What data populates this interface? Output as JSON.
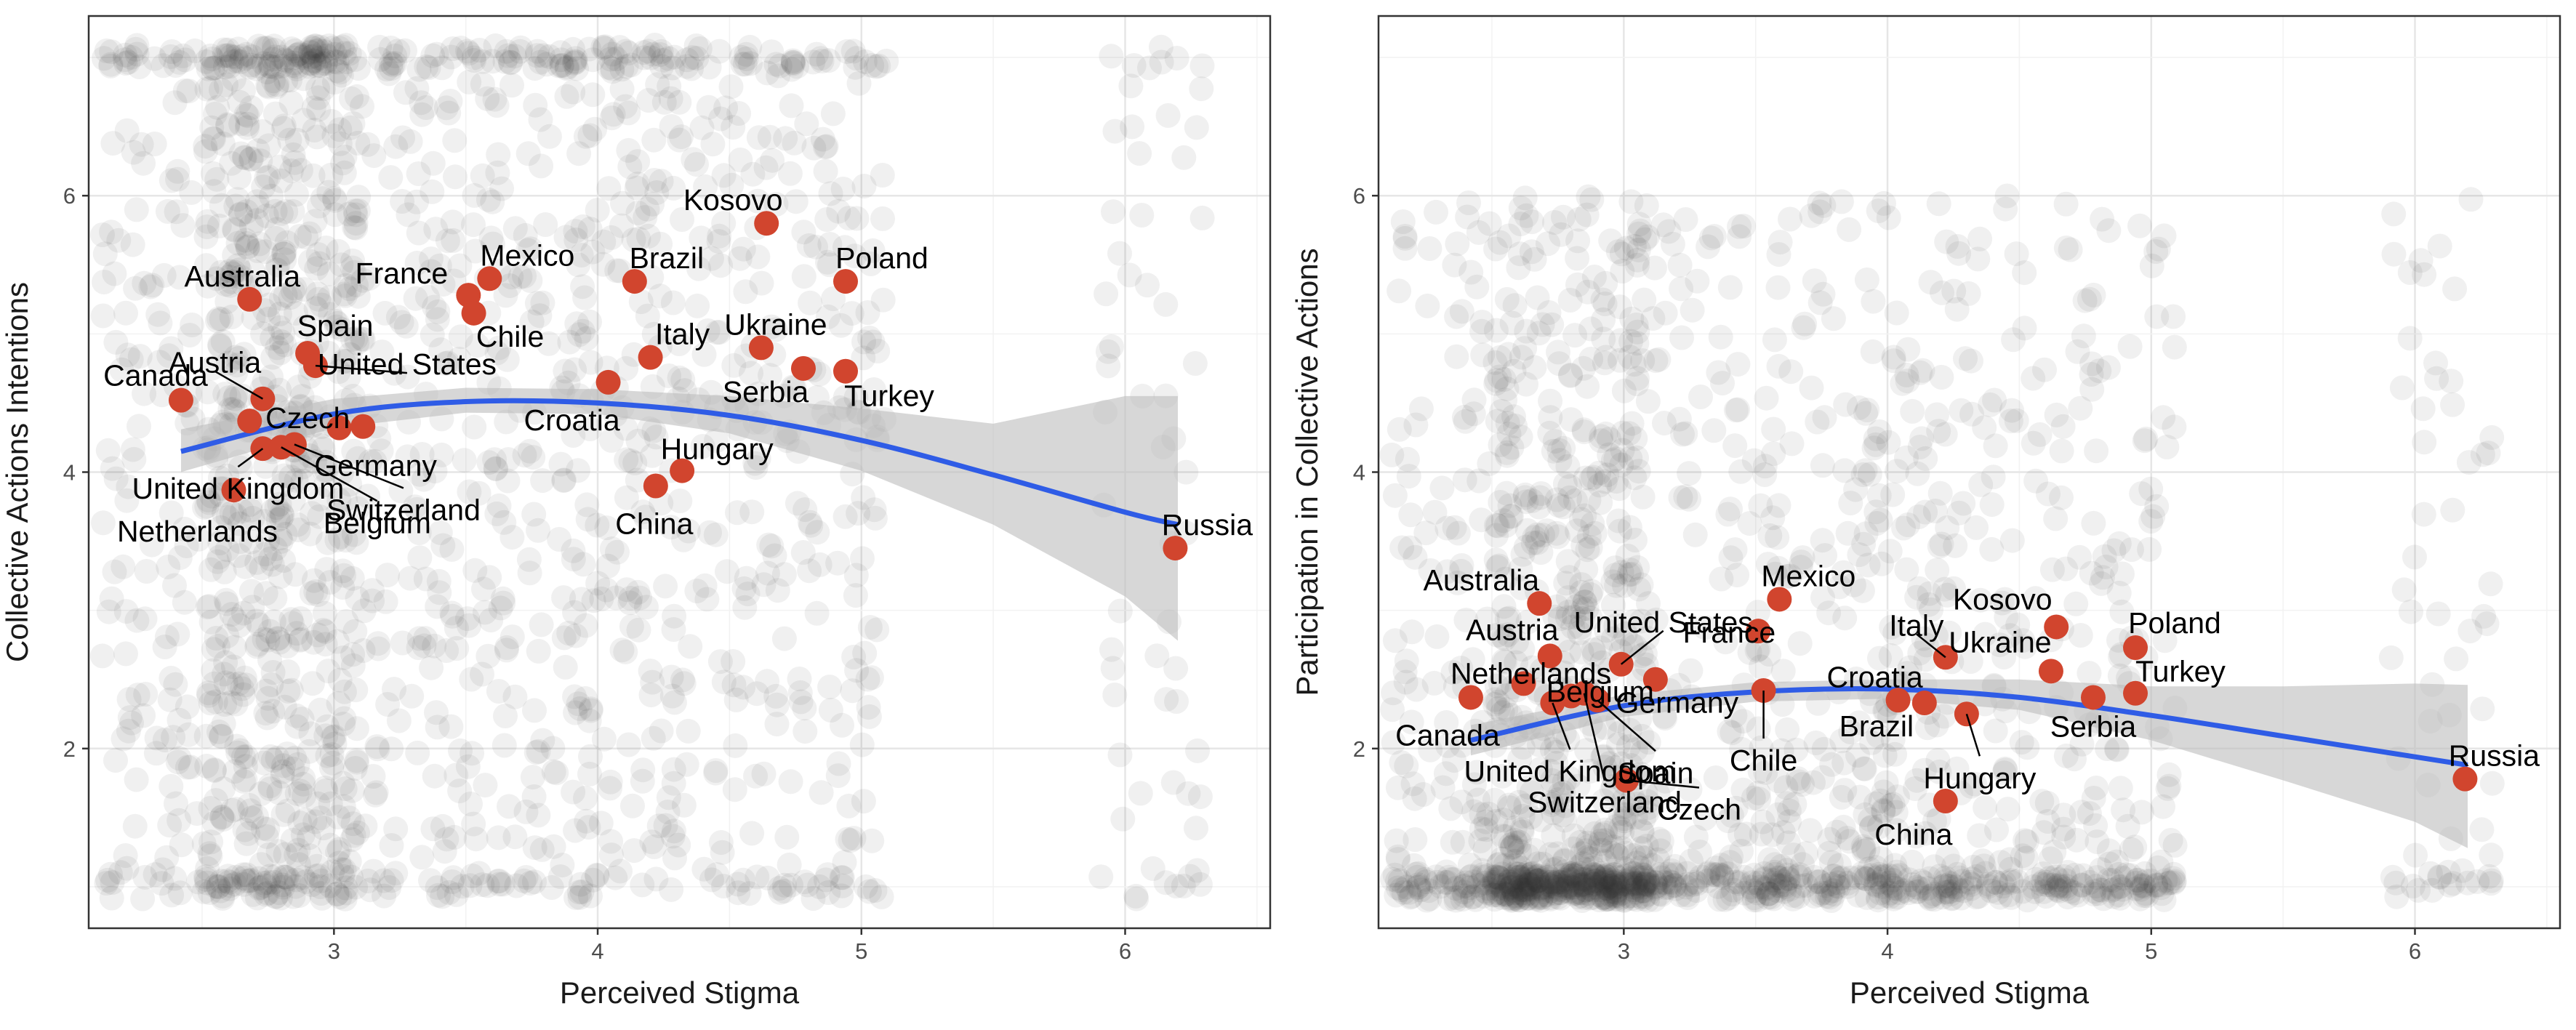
{
  "colors": {
    "jitter_points": "#333333",
    "country_points": "#d1452e",
    "fit_line": "#2f5ce6",
    "confidence_band": "#bdbdbd",
    "grid_major": "#e6e6e6",
    "grid_minor": "#f2f2f2",
    "panel_border": "#333333"
  },
  "chart_data": [
    {
      "type": "scatter",
      "xlabel": "Perceived Stigma",
      "ylabel": "Collective Actions Intentions",
      "x_ticks": [
        3,
        4,
        5,
        6
      ],
      "y_ticks": [
        2,
        4,
        6
      ],
      "xlim": [
        2.07,
        6.55
      ],
      "ylim": [
        0.7,
        7.3
      ],
      "grid": true,
      "individual_responses": {
        "x_levels": [
          2.2,
          2.4,
          2.6,
          2.8,
          3.0,
          3.2,
          3.4,
          3.6,
          3.8,
          4.0,
          4.2,
          4.4,
          4.6,
          4.8,
          5.0,
          6.0,
          6.2
        ],
        "y_range": [
          1,
          7
        ]
      },
      "fit": {
        "method": "quadratic",
        "x": [
          2.42,
          3.0,
          3.5,
          4.0,
          4.5,
          5.0,
          5.5,
          6.0,
          6.2
        ],
        "y": [
          4.15,
          4.42,
          4.51,
          4.5,
          4.41,
          4.23,
          3.98,
          3.71,
          3.62
        ],
        "ci_lower": [
          4.0,
          4.32,
          4.43,
          4.42,
          4.28,
          4.01,
          3.62,
          3.1,
          2.78
        ],
        "ci_upper": [
          4.31,
          4.53,
          4.61,
          4.6,
          4.55,
          4.46,
          4.35,
          4.55,
          4.55
        ]
      },
      "countries": [
        {
          "name": "Australia",
          "x": 2.68,
          "y": 5.25
        },
        {
          "name": "Canada",
          "x": 2.42,
          "y": 4.52
        },
        {
          "name": "Austria",
          "x": 2.73,
          "y": 4.53
        },
        {
          "name": "Czech",
          "x": 2.68,
          "y": 4.37
        },
        {
          "name": "Spain",
          "x": 2.9,
          "y": 4.86
        },
        {
          "name": "United States",
          "x": 2.93,
          "y": 4.77
        },
        {
          "name": "United Kingdom",
          "x": 2.73,
          "y": 4.17
        },
        {
          "name": "Netherlands",
          "x": 2.62,
          "y": 3.87
        },
        {
          "name": "Belgium",
          "x": 2.8,
          "y": 4.18
        },
        {
          "name": "Switzerland",
          "x": 2.85,
          "y": 4.2
        },
        {
          "name": "Germany",
          "x": 3.02,
          "y": 4.32
        },
        {
          "name": "Germany",
          "x": 3.11,
          "y": 4.33
        },
        {
          "name": "France",
          "x": 3.51,
          "y": 5.28
        },
        {
          "name": "Mexico",
          "x": 3.59,
          "y": 5.4
        },
        {
          "name": "Chile",
          "x": 3.53,
          "y": 5.15
        },
        {
          "name": "Croatia",
          "x": 4.04,
          "y": 4.65
        },
        {
          "name": "Brazil",
          "x": 4.14,
          "y": 5.38
        },
        {
          "name": "Italy",
          "x": 4.2,
          "y": 4.83
        },
        {
          "name": "Hungary",
          "x": 4.32,
          "y": 4.01
        },
        {
          "name": "China",
          "x": 4.22,
          "y": 3.9
        },
        {
          "name": "Kosovo",
          "x": 4.64,
          "y": 5.8
        },
        {
          "name": "Ukraine",
          "x": 4.62,
          "y": 4.9
        },
        {
          "name": "Serbia",
          "x": 4.78,
          "y": 4.75
        },
        {
          "name": "Poland",
          "x": 4.94,
          "y": 5.38
        },
        {
          "name": "Turkey",
          "x": 4.94,
          "y": 4.73
        },
        {
          "name": "Russia",
          "x": 6.19,
          "y": 3.45
        }
      ]
    },
    {
      "type": "scatter",
      "xlabel": "Perceived Stigma",
      "ylabel": "Participation in Collective Actions",
      "x_ticks": [
        3,
        4,
        5,
        6
      ],
      "y_ticks": [
        2,
        4,
        6
      ],
      "xlim": [
        2.07,
        6.55
      ],
      "ylim": [
        0.7,
        7.3
      ],
      "grid": true,
      "individual_responses": {
        "x_levels": [
          2.2,
          2.4,
          2.6,
          2.8,
          3.0,
          3.2,
          3.4,
          3.6,
          3.8,
          4.0,
          4.2,
          4.4,
          4.6,
          4.8,
          5.0,
          6.0,
          6.2
        ],
        "y_range": [
          1,
          6
        ]
      },
      "fit": {
        "method": "quadratic",
        "x": [
          2.42,
          3.0,
          3.5,
          4.0,
          4.5,
          5.0,
          5.5,
          6.0,
          6.2
        ],
        "y": [
          2.06,
          2.31,
          2.41,
          2.43,
          2.37,
          2.24,
          2.09,
          1.94,
          1.88
        ],
        "ci_lower": [
          1.95,
          2.23,
          2.34,
          2.36,
          2.28,
          2.06,
          1.77,
          1.47,
          1.28
        ],
        "ci_upper": [
          2.17,
          2.39,
          2.48,
          2.5,
          2.5,
          2.45,
          2.45,
          2.47,
          2.46
        ]
      },
      "countries": [
        {
          "name": "Australia",
          "x": 2.68,
          "y": 3.05
        },
        {
          "name": "Austria",
          "x": 2.72,
          "y": 2.67
        },
        {
          "name": "Netherlands",
          "x": 2.62,
          "y": 2.47
        },
        {
          "name": "Canada",
          "x": 2.42,
          "y": 2.37
        },
        {
          "name": "United Kingdom",
          "x": 2.73,
          "y": 2.33
        },
        {
          "name": "Belgium",
          "x": 2.8,
          "y": 2.38
        },
        {
          "name": "Switzerland",
          "x": 2.85,
          "y": 2.4
        },
        {
          "name": "Spain",
          "x": 2.9,
          "y": 2.35
        },
        {
          "name": "United States",
          "x": 2.99,
          "y": 2.61
        },
        {
          "name": "Czech",
          "x": 3.01,
          "y": 1.77
        },
        {
          "name": "Germany",
          "x": 3.12,
          "y": 2.5
        },
        {
          "name": "France",
          "x": 3.51,
          "y": 2.85
        },
        {
          "name": "Mexico",
          "x": 3.59,
          "y": 3.08
        },
        {
          "name": "Chile",
          "x": 3.53,
          "y": 2.42
        },
        {
          "name": "Croatia",
          "x": 4.04,
          "y": 2.35
        },
        {
          "name": "Brazil",
          "x": 4.14,
          "y": 2.33
        },
        {
          "name": "Italy",
          "x": 4.22,
          "y": 2.66
        },
        {
          "name": "Hungary",
          "x": 4.3,
          "y": 2.25
        },
        {
          "name": "China",
          "x": 4.22,
          "y": 1.62
        },
        {
          "name": "Kosovo",
          "x": 4.64,
          "y": 2.88
        },
        {
          "name": "Ukraine",
          "x": 4.62,
          "y": 2.56
        },
        {
          "name": "Serbia",
          "x": 4.78,
          "y": 2.37
        },
        {
          "name": "Poland",
          "x": 4.94,
          "y": 2.73
        },
        {
          "name": "Turkey",
          "x": 4.94,
          "y": 2.4
        },
        {
          "name": "Russia",
          "x": 6.19,
          "y": 1.78
        }
      ]
    }
  ]
}
